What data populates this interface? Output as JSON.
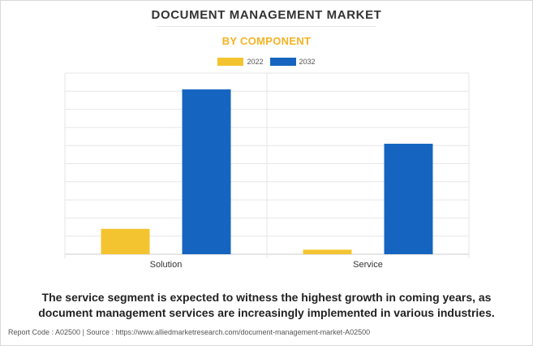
{
  "title": "DOCUMENT MANAGEMENT MARKET",
  "subtitle": "BY COMPONENT",
  "caption_line1": "The service segment is expected to witness the highest growth in coming years, as",
  "caption_line2": "document management services are increasingly implemented in various industries.",
  "footer": {
    "report_code": "Report Code : A02500",
    "separator": "|",
    "source": "Source : https://www.alliedmarketresearch.com/document-management-market-A02500"
  },
  "colors": {
    "2022": "#f4c430",
    "2032": "#1565c0",
    "subtitle": "#f4b223"
  },
  "chart_data": {
    "type": "bar",
    "categories": [
      "Solution",
      "Service"
    ],
    "series": [
      {
        "name": "2022",
        "values": [
          14,
          2.5
        ]
      },
      {
        "name": "2032",
        "values": [
          91,
          61
        ]
      }
    ],
    "ylim": [
      0,
      100
    ],
    "grid": true,
    "y_tick_labels_shown": false,
    "legend_position": "top-center"
  }
}
